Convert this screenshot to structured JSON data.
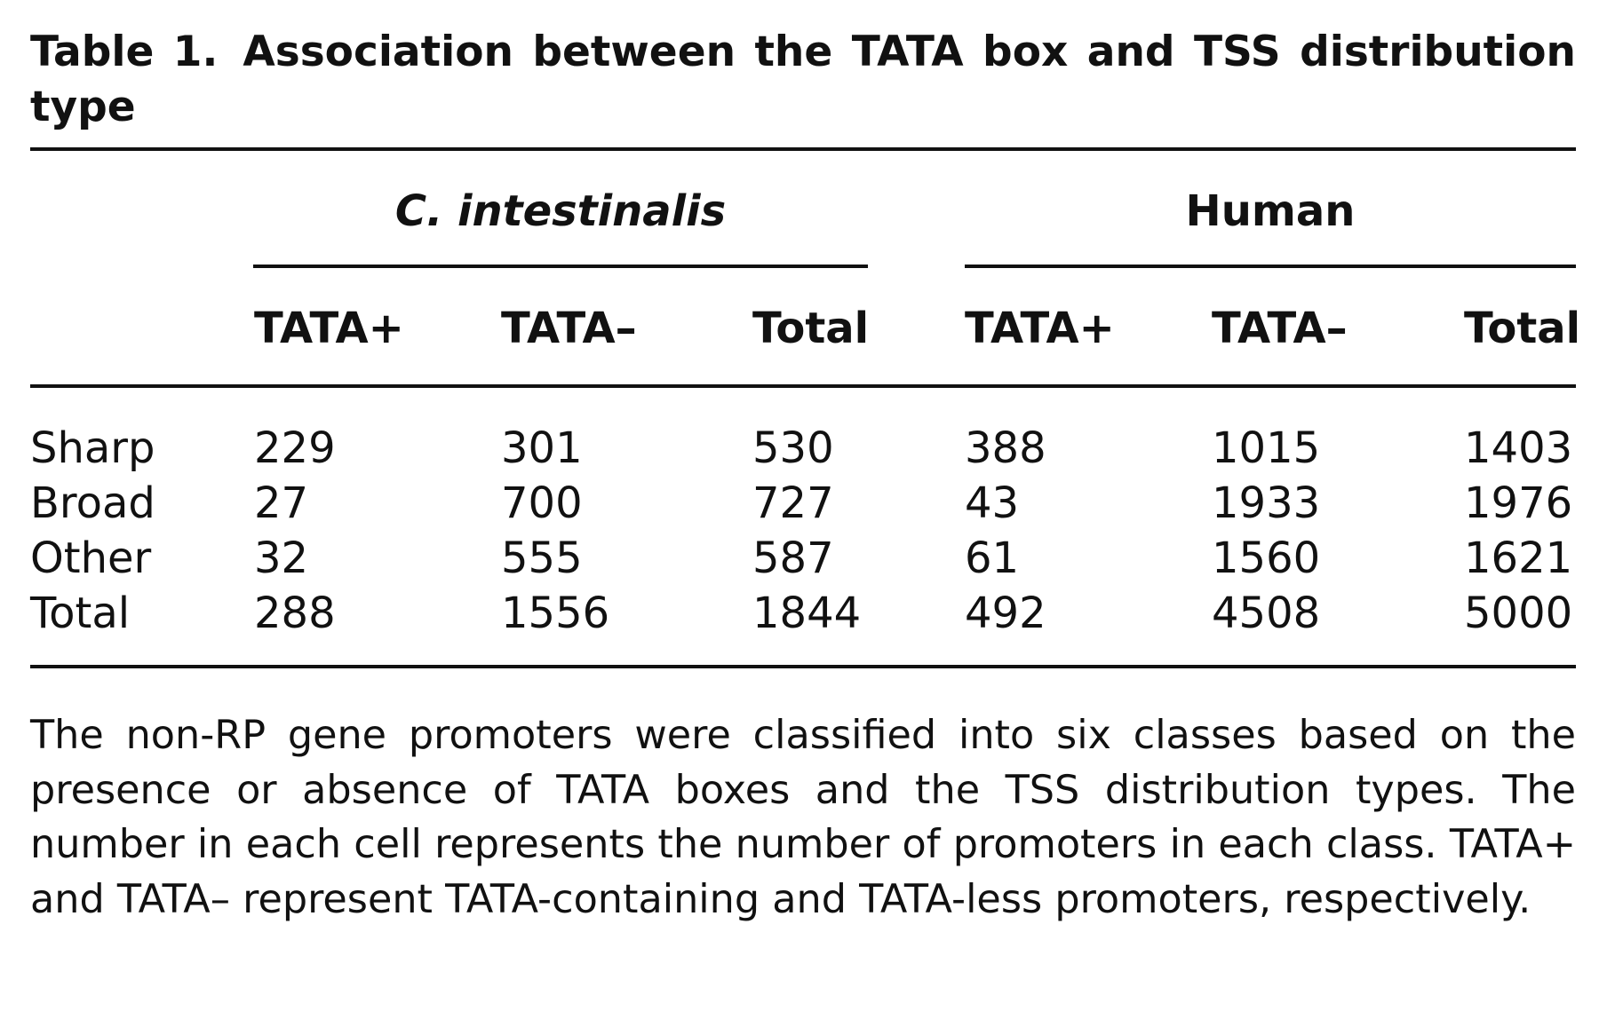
{
  "caption": {
    "label": "Table 1.",
    "text": "Association between the TATA box and TSS distribution type"
  },
  "groups": [
    {
      "name": "C. intestinalis",
      "italic": true
    },
    {
      "name": "Human",
      "italic": false
    }
  ],
  "columns": [
    "TATA+",
    "TATA–",
    "Total",
    "TATA+",
    "TATA–",
    "Total"
  ],
  "rows": [
    {
      "label": "Sharp",
      "values": [
        "229",
        "301",
        "530",
        "388",
        "1015",
        "1403"
      ]
    },
    {
      "label": "Broad",
      "values": [
        "27",
        "700",
        "727",
        "43",
        "1933",
        "1976"
      ]
    },
    {
      "label": "Other",
      "values": [
        "32",
        "555",
        "587",
        "61",
        "1560",
        "1621"
      ]
    },
    {
      "label": "Total",
      "values": [
        "288",
        "1556",
        "1844",
        "492",
        "4508",
        "5000"
      ]
    }
  ],
  "footnote": "The non-RP gene promoters were classified into six classes based on the presence or absence of TATA boxes and the TSS distribution types. The number in each cell represents the number of promoters in each class. TATA+ and TATA– represent TATA-containing and TATA-less promoters, respectively."
}
